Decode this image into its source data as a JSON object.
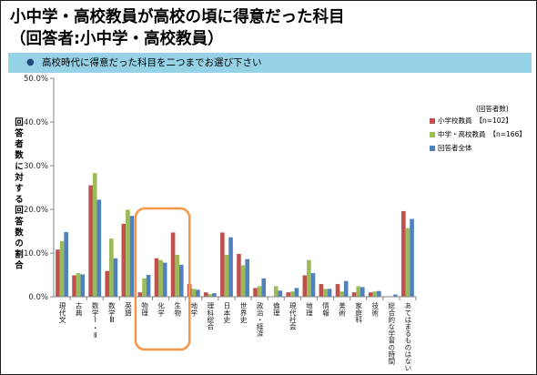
{
  "title": {
    "line1": "小中学・高校教員が高校の頃に得意だった科目",
    "line2": "（回答者:小中学・高校教員）"
  },
  "question": {
    "bullet": "●",
    "text": "高校時代に得意だった科目を二つまでお選び下さい",
    "banner_color": "#96D2E6",
    "bullet_color": "#1F497D"
  },
  "chart_data": {
    "type": "bar",
    "ylabel": "回答者数に対する回答数の割合",
    "ylim": [
      0,
      50
    ],
    "y_tick_labels": [
      "0.0%",
      "10.0%",
      "20.0%",
      "30.0%",
      "40.0%",
      "50.0%"
    ],
    "grid": false,
    "categories": [
      "現代文",
      "古典",
      "数学Ⅰ・Ⅱ",
      "数学Ⅲ",
      "英語",
      "物理",
      "化学",
      "生物",
      "地学",
      "理科総合",
      "日本史",
      "世界史",
      "政治・経済",
      "倫理",
      "現代社会",
      "地理",
      "情報",
      "美術",
      "家庭科",
      "技術",
      "総合的な学習の時間",
      "あてはまるものはない"
    ],
    "series": [
      {
        "name": "小学校教員",
        "n_label": "【n=102】",
        "color": "#C0504D",
        "values": [
          10.8,
          4.9,
          25.5,
          5.9,
          16.7,
          1.0,
          8.8,
          14.7,
          2.9,
          1.0,
          14.7,
          9.8,
          2.0,
          0.0,
          1.0,
          4.9,
          2.9,
          2.9,
          1.0,
          1.0,
          0.0,
          19.6
        ]
      },
      {
        "name": "中学・高校教員",
        "n_label": "【n=166】",
        "color": "#9BBB59",
        "values": [
          12.7,
          5.4,
          28.3,
          13.3,
          19.9,
          4.2,
          8.4,
          9.6,
          1.8,
          0.6,
          9.6,
          7.2,
          2.4,
          2.4,
          1.2,
          8.4,
          1.8,
          1.2,
          2.4,
          1.2,
          0.0,
          15.7
        ]
      },
      {
        "name": "回答者全体",
        "color": "#4F81BD",
        "values": [
          14.8,
          5.1,
          22.2,
          8.8,
          18.5,
          5.0,
          7.8,
          7.3,
          1.6,
          0.8,
          13.6,
          8.6,
          4.2,
          1.4,
          2.0,
          5.4,
          1.8,
          3.6,
          2.2,
          1.3,
          0.5,
          17.8
        ]
      }
    ],
    "legend": {
      "header": "(回答者数)",
      "position": "right"
    },
    "highlight": {
      "categories": [
        "物理",
        "化学",
        "生物"
      ],
      "color": "#F79646"
    }
  }
}
